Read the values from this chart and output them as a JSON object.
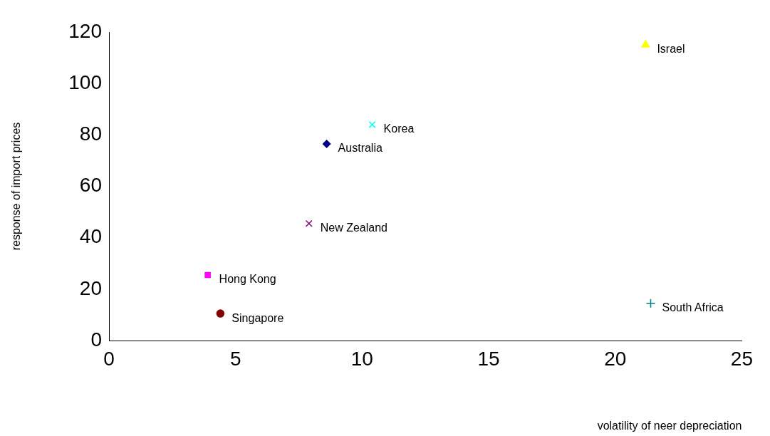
{
  "chart_data": {
    "type": "scatter",
    "xlabel": "volatility of neer depreciation",
    "ylabel": "response of import prices",
    "xlim": [
      0,
      25
    ],
    "xticks": [
      0,
      5,
      10,
      15,
      20,
      25
    ],
    "ylim": [
      0,
      120
    ],
    "yticks": [
      0,
      20,
      40,
      60,
      80,
      100,
      120
    ],
    "grid": false,
    "legend": false,
    "series": [
      {
        "name": "Israel",
        "color": "#ffff00",
        "marker": "triangle",
        "x": [
          21.2
        ],
        "values": [
          115
        ]
      },
      {
        "name": "Korea",
        "color": "#00ffff",
        "marker": "cross",
        "x": [
          10.4
        ],
        "values": [
          84
        ]
      },
      {
        "name": "Australia",
        "color": "#000080",
        "marker": "diamond",
        "x": [
          8.6
        ],
        "values": [
          76.5
        ]
      },
      {
        "name": "New Zealand",
        "color": "#800080",
        "marker": "cross",
        "x": [
          7.9
        ],
        "values": [
          45.5
        ]
      },
      {
        "name": "Hong Kong",
        "color": "#ff00ff",
        "marker": "square",
        "x": [
          3.9
        ],
        "values": [
          25.5
        ]
      },
      {
        "name": "Singapore",
        "color": "#800000",
        "marker": "circle",
        "x": [
          4.4
        ],
        "values": [
          10.5
        ]
      },
      {
        "name": "South Africa",
        "color": "#008080",
        "marker": "plus",
        "x": [
          21.4
        ],
        "values": [
          14.5
        ]
      }
    ]
  }
}
